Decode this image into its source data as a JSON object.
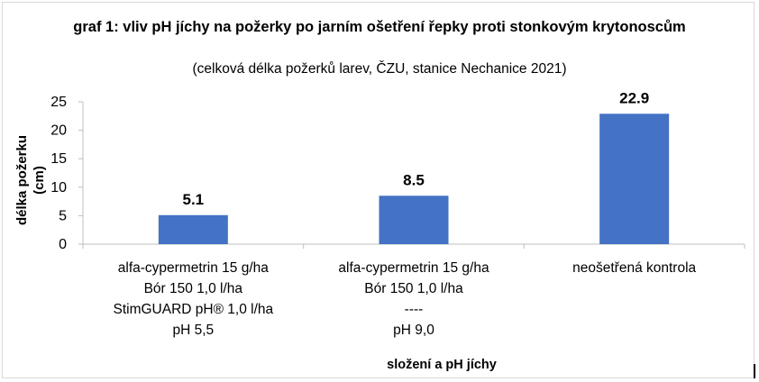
{
  "chart_data": {
    "type": "bar",
    "title": "graf 1: vliv pH jíchy na požerky po jarním ošetření řepky proti stonkovým krytonoscům",
    "subtitle": "(celková délka požerků larev, ČZU, stanice Nechanice 2021)",
    "ylabel_lines": [
      "délka požerku",
      "(cm)"
    ],
    "xlabel": "složení a pH jíchy",
    "ylim": [
      0,
      25
    ],
    "yticks": [
      0,
      5,
      10,
      15,
      20,
      25
    ],
    "grid": false,
    "bar_color": "#4472C4",
    "categories": [
      {
        "lines": [
          "alfa-cypermetrin 15 g/ha",
          "Bór 150 1,0 l/ha",
          "StimGUARD pH® 1,0 l/ha",
          "pH 5,5"
        ]
      },
      {
        "lines": [
          "alfa-cypermetrin 15 g/ha",
          "Bór 150 1,0 l/ha",
          "----",
          "pH 9,0"
        ]
      },
      {
        "lines": [
          "neošetřená kontrola"
        ]
      }
    ],
    "values": [
      5.1,
      8.5,
      22.9
    ],
    "value_labels": [
      "5.1",
      "8.5",
      "22.9"
    ]
  }
}
